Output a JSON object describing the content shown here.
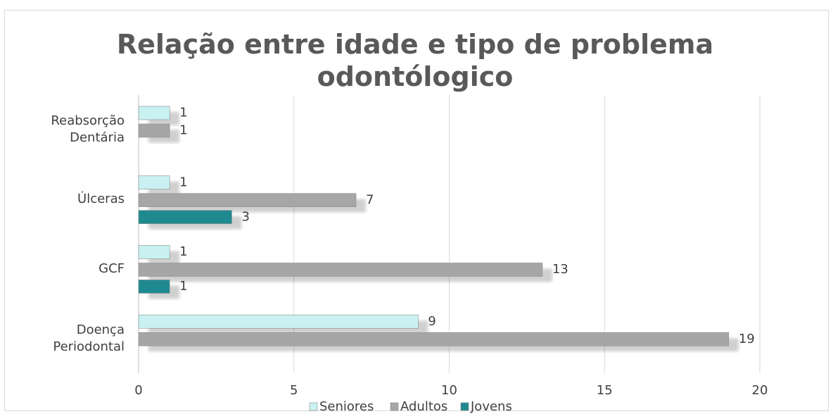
{
  "chart_data": {
    "type": "bar",
    "orientation": "horizontal",
    "title": "Relação entre idade e tipo de problema odontólogico",
    "categories": [
      "Reabsorção Dentária",
      "Úlceras",
      "GCF",
      "Doença Periodontal"
    ],
    "series": [
      {
        "name": "Seniores",
        "color": "#c9f1f1",
        "values": [
          1,
          1,
          1,
          9
        ]
      },
      {
        "name": "Adultos",
        "color": "#a6a6a6",
        "values": [
          1,
          7,
          13,
          19
        ]
      },
      {
        "name": "Jovens",
        "color": "#1e8a90",
        "values": [
          null,
          3,
          1,
          null
        ]
      }
    ],
    "xlim": [
      0,
      20
    ],
    "xticks": [
      0,
      5,
      10,
      15,
      20
    ],
    "grid": true,
    "legend": "bottom"
  }
}
